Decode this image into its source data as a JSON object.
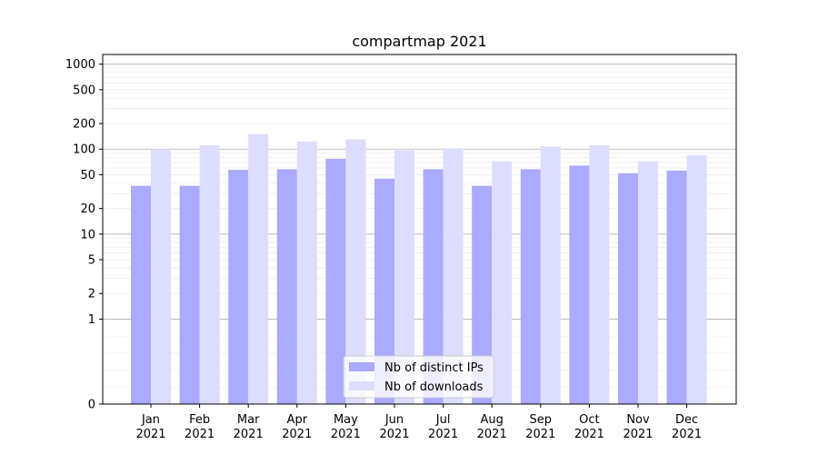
{
  "chart_data": {
    "type": "bar",
    "title": "compartmap 2021",
    "xlabel": "",
    "ylabel": "",
    "yscale": "symlog",
    "ylim": [
      0,
      1300
    ],
    "grid": "horizontal",
    "legend_position": "bottom-center",
    "categories": [
      [
        "Jan",
        "2021"
      ],
      [
        "Feb",
        "2021"
      ],
      [
        "Mar",
        "2021"
      ],
      [
        "Apr",
        "2021"
      ],
      [
        "May",
        "2021"
      ],
      [
        "Jun",
        "2021"
      ],
      [
        "Jul",
        "2021"
      ],
      [
        "Aug",
        "2021"
      ],
      [
        "Sep",
        "2021"
      ],
      [
        "Oct",
        "2021"
      ],
      [
        "Nov",
        "2021"
      ],
      [
        "Dec",
        "2021"
      ]
    ],
    "y_ticks": [
      {
        "value": 0,
        "label": "0"
      },
      {
        "value": 1,
        "label": "1"
      },
      {
        "value": 2,
        "label": "2"
      },
      {
        "value": 5,
        "label": "5"
      },
      {
        "value": 10,
        "label": "10"
      },
      {
        "value": 20,
        "label": "20"
      },
      {
        "value": 50,
        "label": "50"
      },
      {
        "value": 100,
        "label": "100"
      },
      {
        "value": 200,
        "label": "200"
      },
      {
        "value": 500,
        "label": "500"
      },
      {
        "value": 1000,
        "label": "1000"
      }
    ],
    "series": [
      {
        "name": "Nb of distinct IPs",
        "color": "#aaaaff",
        "values": [
          37,
          37,
          57,
          58,
          77,
          45,
          58,
          37,
          58,
          64,
          52,
          56
        ]
      },
      {
        "name": "Nb of downloads",
        "color": "#ddddff",
        "values": [
          100,
          111,
          150,
          123,
          130,
          97,
          102,
          72,
          107,
          111,
          72,
          85
        ]
      }
    ]
  }
}
